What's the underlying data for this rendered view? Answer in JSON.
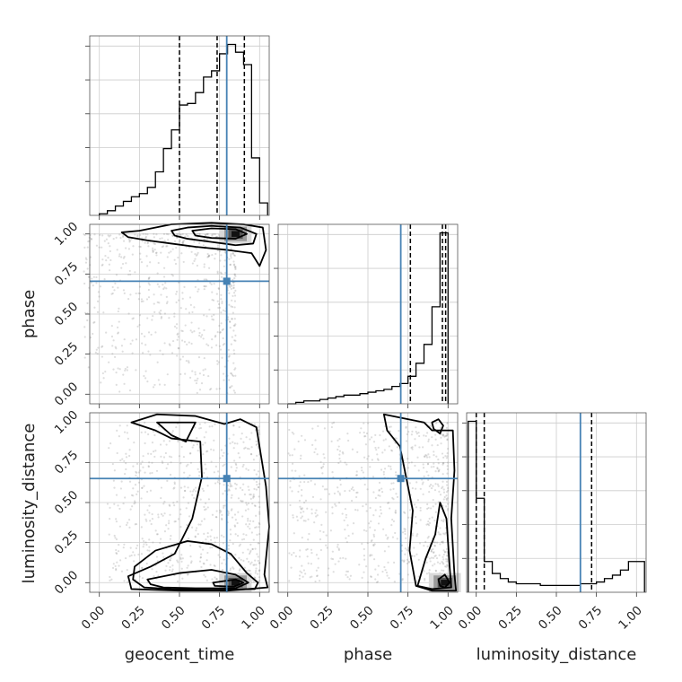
{
  "chart_data": {
    "type": "corner",
    "parameters": [
      "geocent_time",
      "phase",
      "luminosity_distance"
    ],
    "ticks": [
      "0.00",
      "0.25",
      "0.50",
      "0.75",
      "1.00"
    ],
    "tick_values": [
      0,
      0.25,
      0.5,
      0.75,
      1.0
    ],
    "axis_ranges": {
      "geocent_time": [
        -0.06,
        1.06
      ],
      "phase": [
        -0.06,
        1.06
      ],
      "luminosity_distance": [
        -0.06,
        1.06
      ]
    },
    "grid": true,
    "colors": {
      "truth": "#4682b4",
      "contour": "#000000",
      "samples": "#888888"
    },
    "truths": {
      "geocent_time": 0.795,
      "phase": 0.705,
      "luminosity_distance": 0.65
    },
    "quantiles": {
      "geocent_time": [
        0.5,
        0.735,
        0.905
      ],
      "phase": [
        0.765,
        0.965,
        0.985
      ],
      "luminosity_distance": [
        0.0,
        0.05,
        0.72
      ]
    },
    "histograms": {
      "geocent_time": {
        "edges": [
          0,
          0.05,
          0.1,
          0.15,
          0.2,
          0.25,
          0.3,
          0.35,
          0.4,
          0.45,
          0.5,
          0.55,
          0.6,
          0.65,
          0.7,
          0.75,
          0.8,
          0.85,
          0.9,
          0.95,
          1.0,
          1.05
        ],
        "counts": [
          0.01,
          0.03,
          0.06,
          0.09,
          0.12,
          0.14,
          0.18,
          0.28,
          0.43,
          0.55,
          0.71,
          0.72,
          0.79,
          0.89,
          0.93,
          1.04,
          1.1,
          1.05,
          0.97,
          0.37,
          0.08
        ]
      },
      "phase": {
        "edges": [
          0,
          0.05,
          0.1,
          0.15,
          0.2,
          0.25,
          0.3,
          0.35,
          0.4,
          0.45,
          0.5,
          0.55,
          0.6,
          0.65,
          0.7,
          0.75,
          0.8,
          0.85,
          0.9,
          0.95,
          1.0
        ],
        "counts": [
          0.0,
          0.01,
          0.02,
          0.02,
          0.03,
          0.04,
          0.05,
          0.06,
          0.06,
          0.07,
          0.08,
          0.09,
          0.1,
          0.12,
          0.14,
          0.19,
          0.28,
          0.41,
          0.67,
          1.18
        ]
      },
      "luminosity_distance": {
        "edges": [
          -0.05,
          0.0,
          0.05,
          0.1,
          0.15,
          0.2,
          0.25,
          0.3,
          0.35,
          0.4,
          0.45,
          0.5,
          0.55,
          0.6,
          0.65,
          0.7,
          0.75,
          0.8,
          0.85,
          0.9,
          0.95,
          1.0,
          1.05
        ],
        "counts": [
          1.0,
          0.55,
          0.18,
          0.11,
          0.08,
          0.06,
          0.05,
          0.05,
          0.05,
          0.04,
          0.04,
          0.04,
          0.04,
          0.04,
          0.05,
          0.05,
          0.06,
          0.08,
          0.1,
          0.13,
          0.18,
          0.18
        ]
      }
    },
    "panels": [
      {
        "x": "geocent_time",
        "y": "phase",
        "density_peak": [
          0.85,
          1.0
        ],
        "contours": [
          [
            [
              0.14,
              1.01
            ],
            [
              0.25,
              1.02
            ],
            [
              0.45,
              1.06
            ],
            [
              0.7,
              1.07
            ],
            [
              0.9,
              1.06
            ],
            [
              1.02,
              1.04
            ],
            [
              1.04,
              0.9
            ],
            [
              1.0,
              0.8
            ],
            [
              0.95,
              0.88
            ],
            [
              0.8,
              0.9
            ],
            [
              0.6,
              0.92
            ],
            [
              0.45,
              0.94
            ],
            [
              0.3,
              0.96
            ],
            [
              0.18,
              0.98
            ]
          ],
          [
            [
              0.45,
              1.02
            ],
            [
              0.55,
              1.04
            ],
            [
              0.7,
              1.05
            ],
            [
              0.88,
              1.04
            ],
            [
              0.98,
              1.0
            ],
            [
              0.96,
              0.94
            ],
            [
              0.85,
              0.93
            ],
            [
              0.7,
              0.95
            ],
            [
              0.55,
              0.97
            ],
            [
              0.47,
              0.99
            ]
          ],
          [
            [
              0.58,
              1.02
            ],
            [
              0.7,
              1.035
            ],
            [
              0.85,
              1.03
            ],
            [
              0.92,
              1.0
            ],
            [
              0.85,
              0.97
            ],
            [
              0.7,
              0.975
            ],
            [
              0.6,
              0.99
            ]
          ]
        ]
      },
      {
        "x": "geocent_time",
        "y": "luminosity_distance",
        "density_peak": [
          0.85,
          0.0
        ],
        "contours": [
          [
            [
              0.2,
              1.0
            ],
            [
              0.36,
              1.05
            ],
            [
              0.6,
              1.04
            ],
            [
              0.78,
              0.99
            ],
            [
              0.88,
              1.02
            ],
            [
              0.98,
              0.97
            ],
            [
              1.04,
              0.6
            ],
            [
              1.06,
              0.35
            ],
            [
              1.03,
              0.05
            ],
            [
              1.05,
              -0.03
            ],
            [
              0.8,
              -0.05
            ],
            [
              0.5,
              -0.05
            ],
            [
              0.2,
              -0.04
            ],
            [
              0.18,
              0.04
            ],
            [
              0.32,
              0.1
            ],
            [
              0.47,
              0.18
            ],
            [
              0.58,
              0.4
            ],
            [
              0.64,
              0.66
            ],
            [
              0.63,
              0.88
            ],
            [
              0.45,
              0.9
            ],
            [
              0.35,
              0.95
            ]
          ],
          [
            [
              0.36,
              1.0
            ],
            [
              0.45,
              0.92
            ],
            [
              0.54,
              0.88
            ],
            [
              0.6,
              1.0
            ]
          ],
          [
            [
              0.22,
              0.1
            ],
            [
              0.35,
              0.2
            ],
            [
              0.55,
              0.26
            ],
            [
              0.7,
              0.24
            ],
            [
              0.82,
              0.18
            ],
            [
              0.92,
              0.06
            ],
            [
              0.99,
              0.0
            ],
            [
              0.97,
              -0.04
            ],
            [
              0.7,
              -0.045
            ],
            [
              0.45,
              -0.04
            ],
            [
              0.28,
              -0.03
            ],
            [
              0.21,
              0.02
            ]
          ],
          [
            [
              0.3,
              0.02
            ],
            [
              0.5,
              0.06
            ],
            [
              0.7,
              0.08
            ],
            [
              0.85,
              0.05
            ],
            [
              0.93,
              0.0
            ],
            [
              0.85,
              -0.035
            ],
            [
              0.6,
              -0.035
            ],
            [
              0.4,
              -0.03
            ],
            [
              0.32,
              -0.01
            ]
          ],
          [
            [
              0.71,
              0.0
            ],
            [
              0.85,
              0.02
            ],
            [
              0.9,
              0.0
            ],
            [
              0.84,
              -0.025
            ],
            [
              0.72,
              -0.02
            ]
          ]
        ]
      },
      {
        "x": "phase",
        "y": "luminosity_distance",
        "density_peak": [
          0.98,
          0.0
        ],
        "contours": [
          [
            [
              0.6,
              1.05
            ],
            [
              0.85,
              1.0
            ],
            [
              0.9,
              0.95
            ],
            [
              1.03,
              0.95
            ],
            [
              1.04,
              0.7
            ],
            [
              1.02,
              0.4
            ],
            [
              1.04,
              0.05
            ],
            [
              1.05,
              -0.05
            ],
            [
              0.9,
              -0.05
            ],
            [
              0.8,
              -0.02
            ],
            [
              0.76,
              0.2
            ],
            [
              0.78,
              0.45
            ],
            [
              0.74,
              0.65
            ],
            [
              0.7,
              0.85
            ],
            [
              0.62,
              0.95
            ]
          ],
          [
            [
              0.81,
              -0.02
            ],
            [
              0.86,
              0.15
            ],
            [
              0.92,
              0.3
            ],
            [
              0.95,
              0.5
            ],
            [
              0.99,
              0.4
            ],
            [
              1.01,
              0.1
            ],
            [
              1.02,
              -0.03
            ],
            [
              0.9,
              -0.04
            ]
          ],
          [
            [
              0.94,
              0.02
            ],
            [
              0.98,
              0.05
            ],
            [
              1.01,
              0.0
            ],
            [
              0.98,
              -0.03
            ],
            [
              0.95,
              -0.02
            ]
          ],
          [
            [
              0.9,
              1.0
            ],
            [
              0.94,
              1.02
            ],
            [
              0.97,
              0.98
            ],
            [
              0.95,
              0.93
            ],
            [
              0.91,
              0.96
            ]
          ]
        ]
      }
    ]
  }
}
